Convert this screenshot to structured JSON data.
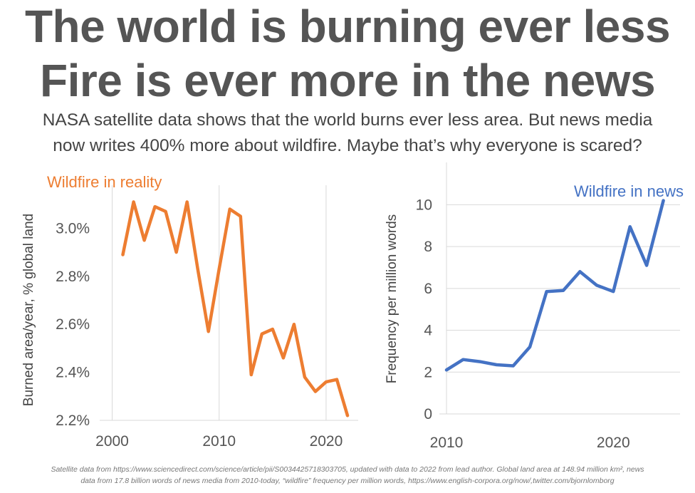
{
  "header": {
    "title_line1": "The world is burning ever less",
    "title_line2": "Fire is ever more in the news",
    "subtitle_line1": "NASA satellite data shows that the world burns ever less area. But news media",
    "subtitle_line2": "now writes 400% more about wildfire. Maybe that’s why everyone is scared?"
  },
  "footnote": {
    "line1": "Satellite data from https://www.sciencedirect.com/science/article/pii/S0034425718303705, updated with data to 2022 from lead author. Global land area at 148.94 million km², news",
    "line2": "data from 17.8 billion words of news media from 2010-today, “wildfire” frequency per million words, https://www.english-corpora.org/now/,twitter.com/bjornlomborg"
  },
  "chart_data": [
    {
      "type": "line",
      "title": "Wildfire in reality",
      "ylabel": "Burned area/year, % global land",
      "xlabel": "",
      "color": "#ED7D31",
      "xlim": [
        1999.5,
        2023
      ],
      "ylim": [
        2.2,
        3.12
      ],
      "xticks": [
        2000,
        2010,
        2020
      ],
      "yticks": [
        2.2,
        2.4,
        2.6,
        2.8,
        3.0
      ],
      "ytick_labels": [
        "2.2%",
        "2.4%",
        "2.6%",
        "2.8%",
        "3.0%"
      ],
      "grid": "vertical",
      "series": [
        {
          "x": [
            2001,
            2002,
            2003,
            2004,
            2005,
            2006,
            2007,
            2008,
            2009,
            2010,
            2011,
            2012,
            2013,
            2014,
            2015,
            2016,
            2017,
            2018,
            2019,
            2020,
            2021,
            2022
          ],
          "values": [
            2.89,
            3.11,
            2.95,
            3.09,
            3.07,
            2.9,
            3.11,
            2.83,
            2.57,
            2.83,
            3.08,
            3.05,
            2.39,
            2.56,
            2.58,
            2.46,
            2.6,
            2.38,
            2.32,
            2.36,
            2.37,
            2.22
          ]
        }
      ]
    },
    {
      "type": "line",
      "title": "Wildfire in news",
      "ylabel": "Frequency per million words",
      "xlabel": "",
      "color": "#4472C4",
      "xlim": [
        2010,
        2024
      ],
      "ylim": [
        0,
        11
      ],
      "xticks": [
        2010,
        2020
      ],
      "yticks": [
        0,
        2,
        4,
        6,
        8,
        10
      ],
      "ytick_labels": [
        "0",
        "2",
        "4",
        "6",
        "8",
        "10"
      ],
      "grid": "horizontal",
      "series": [
        {
          "x": [
            2010,
            2011,
            2012,
            2013,
            2014,
            2015,
            2016,
            2017,
            2018,
            2019,
            2020,
            2021,
            2022,
            2023
          ],
          "values": [
            2.1,
            2.6,
            2.5,
            2.35,
            2.3,
            3.2,
            5.85,
            5.9,
            6.8,
            6.15,
            5.85,
            8.95,
            7.1,
            10.2
          ]
        }
      ]
    }
  ]
}
